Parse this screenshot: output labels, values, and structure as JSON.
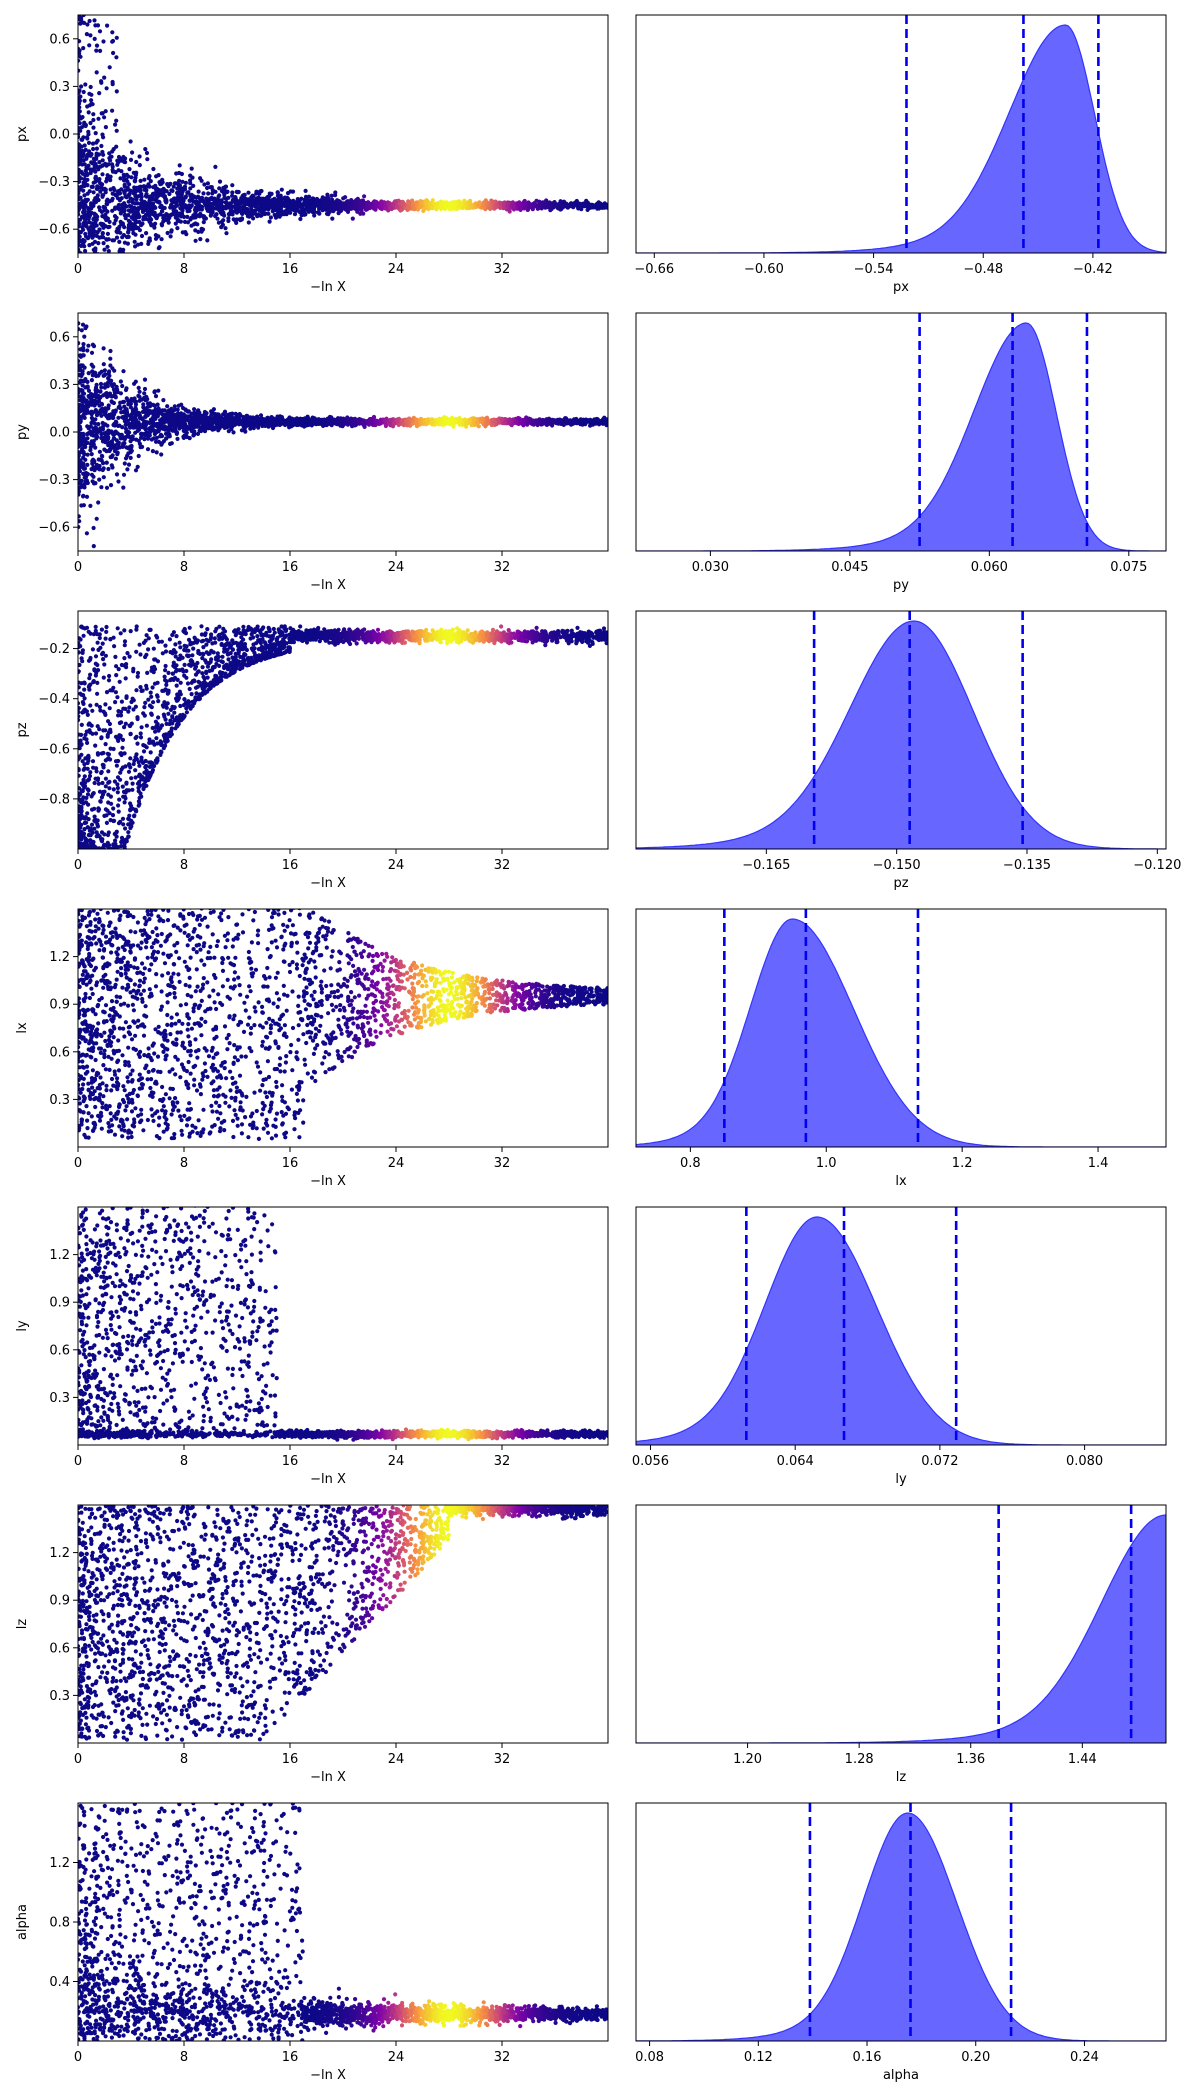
{
  "chart_data": [
    {
      "type": "scatter",
      "param": "px",
      "xlabel": "−ln X",
      "ylabel": "px",
      "xlim": [
        0,
        40
      ],
      "xticks": [
        0,
        8,
        16,
        24,
        32
      ],
      "ylim": [
        -0.75,
        0.75
      ],
      "yticks": [
        0.6,
        0.3,
        0.0,
        -0.3,
        -0.6
      ],
      "ytick_labels": [
        "0.6",
        "0.3",
        "0.0",
        "−0.3",
        "−0.6"
      ],
      "converge_value": -0.45,
      "early": "spread",
      "peak_x": 28
    },
    {
      "type": "area",
      "param": "px",
      "xlabel": "px",
      "xlim": [
        -0.67,
        -0.38
      ],
      "xticks": [
        -0.66,
        -0.6,
        -0.54,
        -0.48,
        -0.42
      ],
      "xtick_labels": [
        "−0.66",
        "−0.60",
        "−0.54",
        "−0.48",
        "−0.42"
      ],
      "mode": -0.435,
      "sigma_left": 0.03,
      "sigma_right": 0.016,
      "vlines": [
        -0.522,
        -0.458,
        -0.417
      ]
    },
    {
      "type": "scatter",
      "param": "py",
      "xlabel": "−ln X",
      "ylabel": "py",
      "xlim": [
        0,
        40
      ],
      "xticks": [
        0,
        8,
        16,
        24,
        32
      ],
      "ylim": [
        -0.75,
        0.75
      ],
      "yticks": [
        0.6,
        0.3,
        0.0,
        -0.3,
        -0.6
      ],
      "ytick_labels": [
        "0.6",
        "0.3",
        "0.0",
        "−0.3",
        "−0.6"
      ],
      "converge_value": 0.065,
      "early": "funnel",
      "peak_x": 28
    },
    {
      "type": "area",
      "param": "py",
      "xlabel": "py",
      "xlim": [
        0.022,
        0.079
      ],
      "xticks": [
        0.03,
        0.045,
        0.06,
        0.075
      ],
      "xtick_labels": [
        "0.030",
        "0.045",
        "0.060",
        "0.075"
      ],
      "mode": 0.064,
      "sigma_left": 0.0055,
      "sigma_right": 0.0032,
      "vlines": [
        0.0525,
        0.0625,
        0.0705
      ]
    },
    {
      "type": "scatter",
      "param": "pz",
      "xlabel": "−ln X",
      "ylabel": "pz",
      "xlim": [
        0,
        40
      ],
      "xticks": [
        0,
        8,
        16,
        24,
        32
      ],
      "ylim": [
        -1.0,
        -0.05
      ],
      "yticks": [
        -0.2,
        -0.4,
        -0.6,
        -0.8
      ],
      "ytick_labels": [
        "−0.2",
        "−0.4",
        "−0.6",
        "−0.8"
      ],
      "converge_value": -0.15,
      "early": "lowfill",
      "peak_x": 28
    },
    {
      "type": "area",
      "param": "pz",
      "xlabel": "pz",
      "xlim": [
        -0.18,
        -0.119
      ],
      "xticks": [
        -0.165,
        -0.15,
        -0.135,
        -0.12
      ],
      "xtick_labels": [
        "−0.165",
        "−0.150",
        "−0.135",
        "−0.120"
      ],
      "mode": -0.148,
      "sigma_left": 0.0072,
      "sigma_right": 0.0068,
      "vlines": [
        -0.1595,
        -0.1485,
        -0.1355
      ]
    },
    {
      "type": "scatter",
      "param": "lx",
      "xlabel": "−ln X",
      "ylabel": "lx",
      "xlim": [
        0,
        40
      ],
      "xticks": [
        0,
        8,
        16,
        24,
        32
      ],
      "ylim": [
        0.0,
        1.5
      ],
      "yticks": [
        1.2,
        0.9,
        0.6,
        0.3
      ],
      "ytick_labels": [
        "1.2",
        "0.9",
        "0.6",
        "0.3"
      ],
      "converge_value": 0.95,
      "early": "uniform_lx",
      "peak_x": 28
    },
    {
      "type": "area",
      "param": "lx",
      "xlabel": "lx",
      "xlim": [
        0.72,
        1.5
      ],
      "xticks": [
        0.8,
        1.0,
        1.2,
        1.4
      ],
      "xtick_labels": [
        "0.8",
        "1.0",
        "1.2",
        "1.4"
      ],
      "mode": 0.95,
      "sigma_left": 0.06,
      "sigma_right": 0.09,
      "vlines": [
        0.85,
        0.97,
        1.135
      ]
    },
    {
      "type": "scatter",
      "param": "ly",
      "xlabel": "−ln X",
      "ylabel": "ly",
      "xlim": [
        0,
        40
      ],
      "xticks": [
        0,
        8,
        16,
        24,
        32
      ],
      "ylim": [
        0.0,
        1.5
      ],
      "yticks": [
        1.2,
        0.9,
        0.6,
        0.3
      ],
      "ytick_labels": [
        "1.2",
        "0.9",
        "0.6",
        "0.3"
      ],
      "converge_value": 0.068,
      "early": "uniform_ly",
      "peak_x": 28
    },
    {
      "type": "area",
      "param": "ly",
      "xlabel": "ly",
      "xlim": [
        0.0552,
        0.0845
      ],
      "xticks": [
        0.056,
        0.064,
        0.072,
        0.08
      ],
      "xtick_labels": [
        "0.056",
        "0.064",
        "0.072",
        "0.080"
      ],
      "mode": 0.0652,
      "sigma_left": 0.0028,
      "sigma_right": 0.0033,
      "vlines": [
        0.0613,
        0.0667,
        0.0729
      ]
    },
    {
      "type": "scatter",
      "param": "lz",
      "xlabel": "−ln X",
      "ylabel": "lz",
      "xlim": [
        0,
        40
      ],
      "xticks": [
        0,
        8,
        16,
        24,
        32
      ],
      "ylim": [
        0.0,
        1.5
      ],
      "yticks": [
        1.2,
        0.9,
        0.6,
        0.3
      ],
      "ytick_labels": [
        "1.2",
        "0.9",
        "0.6",
        "0.3"
      ],
      "converge_value": 1.5,
      "early": "uniform_lz",
      "peak_x": 28
    },
    {
      "type": "area",
      "param": "lz",
      "xlabel": "lz",
      "xlim": [
        1.12,
        1.5
      ],
      "xticks": [
        1.2,
        1.28,
        1.36,
        1.44
      ],
      "xtick_labels": [
        "1.20",
        "1.28",
        "1.36",
        "1.44"
      ],
      "mode": 1.5,
      "sigma_left": 0.045,
      "sigma_right": 0.01,
      "vlines": [
        1.38,
        1.475
      ]
    },
    {
      "type": "scatter",
      "param": "alpha",
      "xlabel": "−ln X",
      "ylabel": "alpha",
      "xlim": [
        0,
        40
      ],
      "xticks": [
        0,
        8,
        16,
        24,
        32
      ],
      "ylim": [
        0.0,
        1.6
      ],
      "yticks": [
        1.2,
        0.8,
        0.4
      ],
      "ytick_labels": [
        "1.2",
        "0.8",
        "0.4"
      ],
      "converge_value": 0.18,
      "early": "uniform_alpha",
      "peak_x": 28
    },
    {
      "type": "area",
      "param": "alpha",
      "xlabel": "alpha",
      "xlim": [
        0.075,
        0.27
      ],
      "xticks": [
        0.08,
        0.12,
        0.16,
        0.2,
        0.24
      ],
      "xtick_labels": [
        "0.08",
        "0.12",
        "0.16",
        "0.20",
        "0.24"
      ],
      "mode": 0.175,
      "sigma_left": 0.016,
      "sigma_right": 0.018,
      "vlines": [
        0.139,
        0.176,
        0.213
      ]
    }
  ],
  "colors": {
    "scatter_base": "#0d0887",
    "kde_fill": "#6464ff",
    "kde_edge": "#3333ff",
    "quantile_line": "#0000ee"
  }
}
